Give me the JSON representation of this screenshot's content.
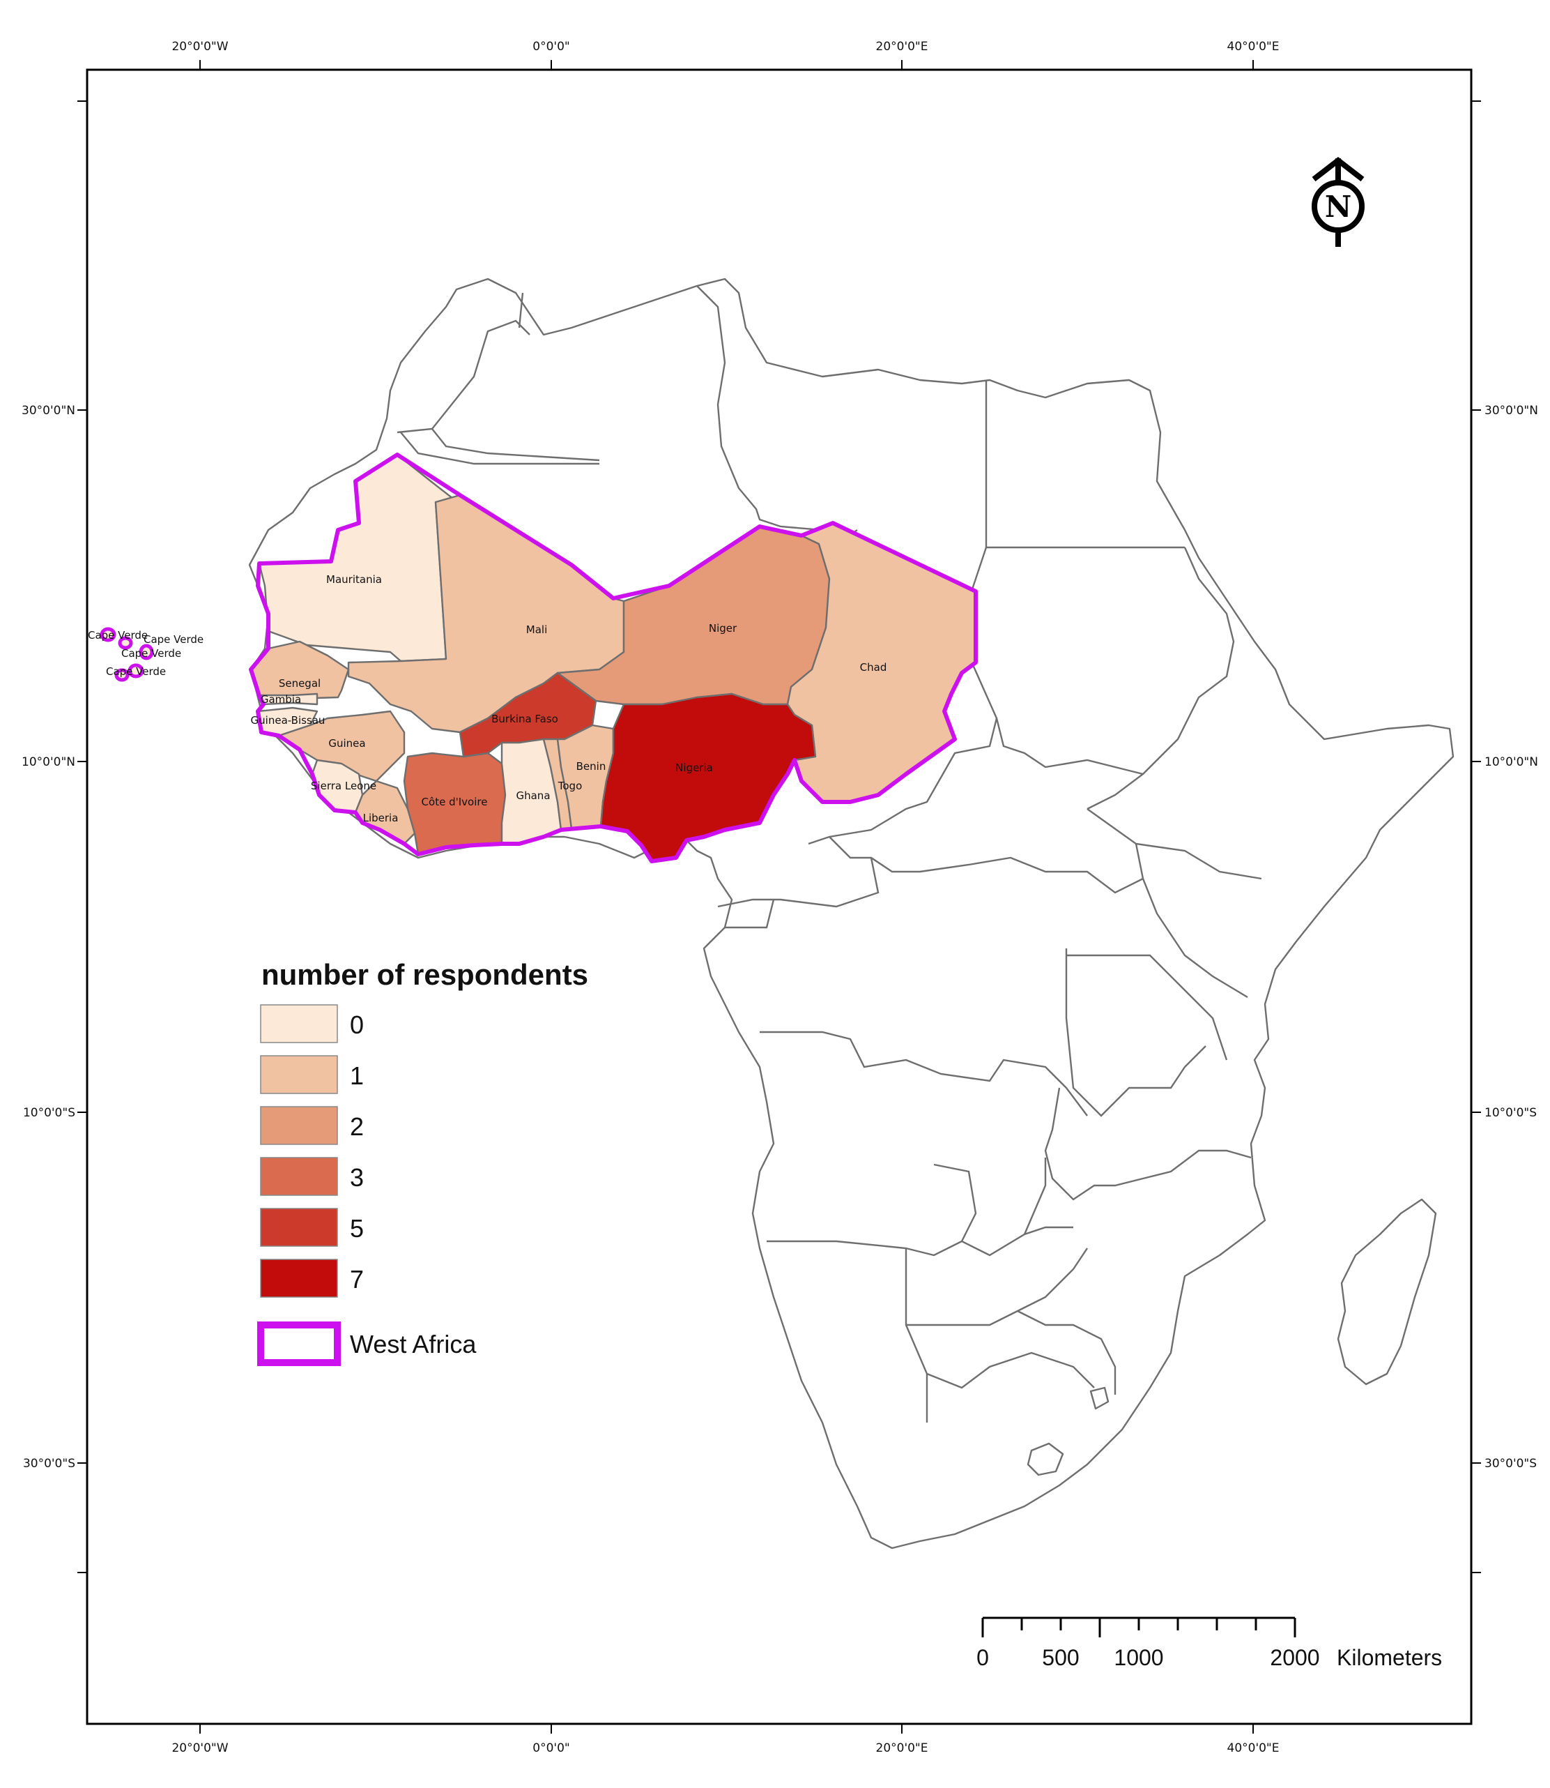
{
  "coordinates": {
    "top": [
      "20°0'0\"W",
      "0°0'0\"",
      "20°0'0\"E",
      "40°0'0\"E"
    ],
    "bottom": [
      "20°0'0\"W",
      "0°0'0\"",
      "20°0'0\"E",
      "40°0'0\"E"
    ],
    "left": [
      "30°0'0\"N",
      "10°0'0\"N",
      "10°0'0\"S",
      "30°0'0\"S"
    ],
    "right": [
      "30°0'0\"N",
      "10°0'0\"N",
      "10°0'0\"S",
      "30°0'0\"S"
    ]
  },
  "north_arrow": {
    "letter": "N"
  },
  "legend": {
    "title": "number of respondents",
    "classes": [
      {
        "label": "0",
        "color": "#fde9d7"
      },
      {
        "label": "1",
        "color": "#f0c2a2"
      },
      {
        "label": "2",
        "color": "#e59a78"
      },
      {
        "label": "3",
        "color": "#db6b4f"
      },
      {
        "label": "5",
        "color": "#cc3a2b"
      },
      {
        "label": "7",
        "color": "#c20c0c"
      }
    ],
    "region": {
      "label": "West Africa",
      "color": "#cc11ee"
    }
  },
  "countries": [
    {
      "name": "Mauritania",
      "respondents": 0
    },
    {
      "name": "Mali",
      "respondents": 1
    },
    {
      "name": "Niger",
      "respondents": 2
    },
    {
      "name": "Chad",
      "respondents": 1
    },
    {
      "name": "Senegal",
      "respondents": 1
    },
    {
      "name": "Gambia",
      "respondents": 0
    },
    {
      "name": "Guinea-Bissau",
      "respondents": 0
    },
    {
      "name": "Guinea",
      "respondents": 1
    },
    {
      "name": "Sierra Leone",
      "respondents": 0
    },
    {
      "name": "Liberia",
      "respondents": 1
    },
    {
      "name": "Côte d'Ivoire",
      "respondents": 3
    },
    {
      "name": "Burkina Faso",
      "respondents": 5
    },
    {
      "name": "Ghana",
      "respondents": 0
    },
    {
      "name": "Togo",
      "respondents": 1
    },
    {
      "name": "Benin",
      "respondents": 1
    },
    {
      "name": "Nigeria",
      "respondents": 7
    }
  ],
  "cape_verde_labels": [
    "Cape Verde",
    "Cape Verde",
    "Cape Verde",
    "Cape Verde"
  ],
  "scale_bar": {
    "ticks": [
      "0",
      "500",
      "1000",
      "2000"
    ],
    "unit": "Kilometers"
  }
}
